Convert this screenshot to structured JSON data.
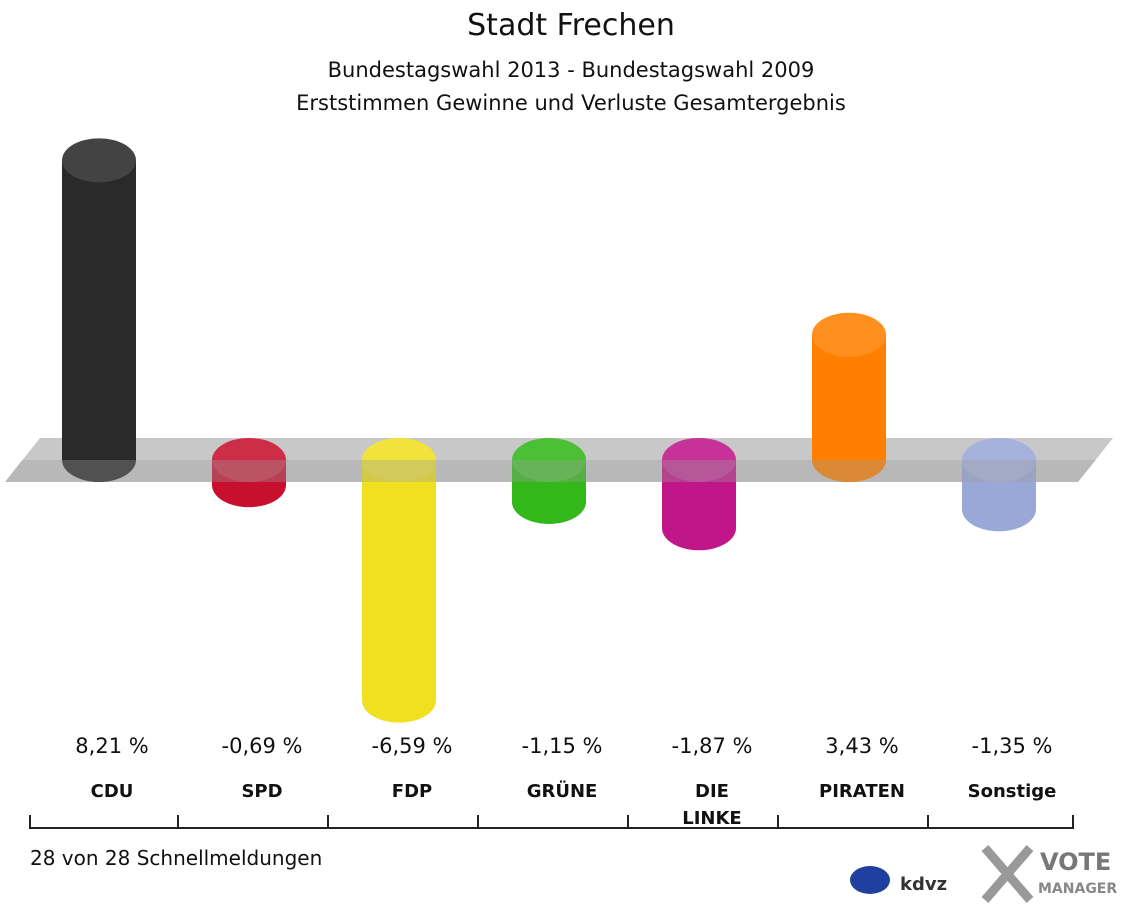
{
  "chart_data": {
    "type": "bar",
    "title": "Stadt Frechen",
    "subtitle": "Bundestagswahl 2013 - Bundestagswahl 2009",
    "subtitle2": "Erststimmen Gewinne und Verluste Gesamtergebnis",
    "categories": [
      "CDU",
      "SPD",
      "FDP",
      "GRÜNE",
      "DIE\nLINKE",
      "PIRATEN",
      "Sonstige"
    ],
    "values": [
      8.21,
      -0.69,
      -6.59,
      -1.15,
      -1.87,
      3.43,
      -1.35
    ],
    "value_labels": [
      "8,21 %",
      "-0,69 %",
      "-6,59 %",
      "-1,15 %",
      "-1,87 %",
      "3,43 %",
      "-1,35 %"
    ],
    "colors": [
      "#2a2a2a",
      "#c8102e",
      "#f0e020",
      "#33b81a",
      "#c0168a",
      "#ff8000",
      "#9aa8d8"
    ],
    "footnote": "28 von 28 Schnellmeldungen"
  },
  "logo": {
    "kdvz": "kdvz",
    "vote": "VOTE",
    "manager": "MANAGER"
  }
}
